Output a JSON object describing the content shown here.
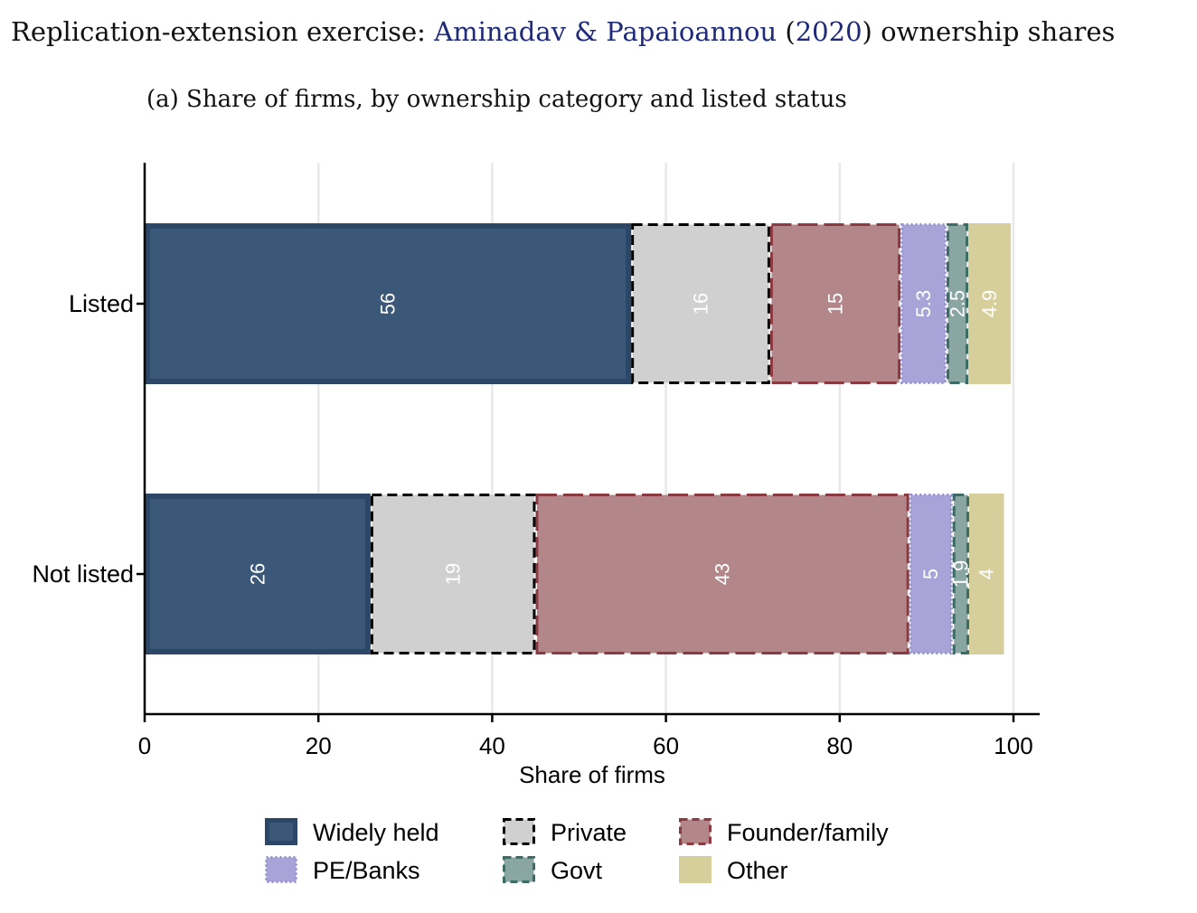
{
  "header": {
    "title_prefix": "Replication-extension exercise: ",
    "title_citation_authors": "Aminadav & Papaioannou",
    "title_open_paren": " (",
    "title_citation_year": "2020",
    "title_close_paren": ")",
    "title_suffix": " ownership shares",
    "subtitle": "(a) Share of firms, by ownership category and listed status",
    "citation_color": "#1f2a7a"
  },
  "chart_data": {
    "type": "bar",
    "orientation": "horizontal",
    "stacked": true,
    "categories": [
      "Listed",
      "Not listed"
    ],
    "xlabel": "Share of firms",
    "xlim": [
      0,
      100
    ],
    "xticks": [
      0,
      20,
      40,
      60,
      80,
      100
    ],
    "grid": "vertical",
    "legend_position": "bottom",
    "series": [
      {
        "name": "Widely held",
        "values": [
          56,
          26
        ],
        "labels": [
          "56",
          "26"
        ],
        "color": "#3b5878",
        "edge": "#2c4668",
        "style": "solid"
      },
      {
        "name": "Private",
        "values": [
          16,
          19
        ],
        "labels": [
          "16",
          "19"
        ],
        "color": "#d0d0d0",
        "edge": "#000000",
        "style": "dashed"
      },
      {
        "name": "Founder/family",
        "values": [
          15,
          43
        ],
        "labels": [
          "15",
          "43"
        ],
        "color": "#b3878a",
        "edge": "#8a3a40",
        "style": "longdash"
      },
      {
        "name": "PE/Banks",
        "values": [
          5.3,
          5
        ],
        "labels": [
          "5.3",
          "5"
        ],
        "color": "#a8a4d8",
        "edge": "#9590d0",
        "style": "dotted"
      },
      {
        "name": "Govt",
        "values": [
          2.5,
          1.9
        ],
        "labels": [
          "2.5",
          "1.9"
        ],
        "color": "#8aa6a2",
        "edge": "#3d6b66",
        "style": "dashed"
      },
      {
        "name": "Other",
        "values": [
          4.9,
          4
        ],
        "labels": [
          "4.9",
          "4"
        ],
        "color": "#d6cf9c",
        "edge": "#d6cf9c",
        "style": "solid"
      }
    ]
  }
}
